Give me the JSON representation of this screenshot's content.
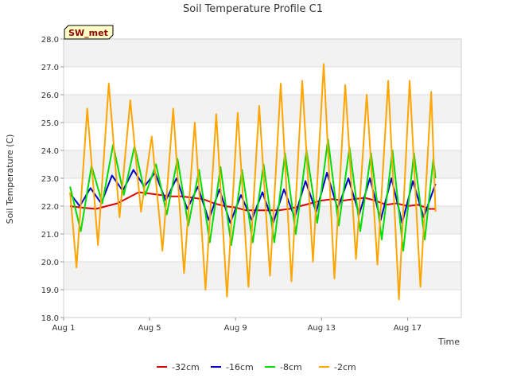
{
  "chart_data": {
    "type": "line",
    "title": "Soil Temperature Profile C1",
    "xlabel": "Time",
    "ylabel": "Soil Temperature (C)",
    "ylim": [
      18.0,
      28.0
    ],
    "y_ticks": [
      "18.0",
      "19.0",
      "20.0",
      "21.0",
      "22.0",
      "23.0",
      "24.0",
      "25.0",
      "26.0",
      "27.0",
      "28.0"
    ],
    "x_range": [
      "Aug 1",
      "Aug 19"
    ],
    "x_ticks": [
      {
        "day": 1,
        "label": "Aug 1"
      },
      {
        "day": 5,
        "label": "Aug 5"
      },
      {
        "day": 9,
        "label": "Aug 9"
      },
      {
        "day": 13,
        "label": "Aug 13"
      },
      {
        "day": 17,
        "label": "Aug 17"
      }
    ],
    "grid": "horizontal bands",
    "legend_position": "bottom-center",
    "site_label": "SW_met",
    "series": [
      {
        "name": "-32cm",
        "color": "#dd0000",
        "points": [
          [
            1.3,
            22.0
          ],
          [
            1.8,
            21.95
          ],
          [
            2.5,
            21.9
          ],
          [
            3.0,
            22.0
          ],
          [
            3.5,
            22.1
          ],
          [
            4.0,
            22.3
          ],
          [
            4.5,
            22.5
          ],
          [
            5.0,
            22.45
          ],
          [
            5.5,
            22.4
          ],
          [
            6.0,
            22.35
          ],
          [
            6.5,
            22.35
          ],
          [
            7.0,
            22.3
          ],
          [
            7.5,
            22.25
          ],
          [
            8.0,
            22.1
          ],
          [
            8.5,
            22.0
          ],
          [
            9.0,
            21.95
          ],
          [
            9.5,
            21.85
          ],
          [
            10.0,
            21.85
          ],
          [
            10.5,
            21.85
          ],
          [
            11.0,
            21.85
          ],
          [
            11.5,
            21.9
          ],
          [
            12.0,
            22.0
          ],
          [
            12.5,
            22.1
          ],
          [
            13.0,
            22.2
          ],
          [
            13.5,
            22.25
          ],
          [
            14.0,
            22.2
          ],
          [
            14.5,
            22.25
          ],
          [
            15.0,
            22.3
          ],
          [
            15.5,
            22.2
          ],
          [
            16.0,
            22.05
          ],
          [
            16.5,
            22.1
          ],
          [
            17.0,
            22.0
          ],
          [
            17.5,
            22.05
          ],
          [
            18.0,
            21.9
          ],
          [
            18.3,
            21.9
          ]
        ]
      },
      {
        "name": "-16cm",
        "color": "#0000cc",
        "points": [
          [
            1.3,
            22.45
          ],
          [
            1.75,
            22.0
          ],
          [
            2.25,
            22.65
          ],
          [
            2.75,
            22.1
          ],
          [
            3.25,
            23.1
          ],
          [
            3.75,
            22.55
          ],
          [
            4.25,
            23.3
          ],
          [
            4.75,
            22.7
          ],
          [
            5.25,
            23.2
          ],
          [
            5.75,
            22.2
          ],
          [
            6.25,
            23.0
          ],
          [
            6.75,
            21.9
          ],
          [
            7.25,
            22.7
          ],
          [
            7.75,
            21.5
          ],
          [
            8.25,
            22.6
          ],
          [
            8.75,
            21.4
          ],
          [
            9.25,
            22.4
          ],
          [
            9.75,
            21.5
          ],
          [
            10.25,
            22.5
          ],
          [
            10.75,
            21.4
          ],
          [
            11.25,
            22.6
          ],
          [
            11.75,
            21.6
          ],
          [
            12.25,
            22.9
          ],
          [
            12.75,
            21.8
          ],
          [
            13.25,
            23.2
          ],
          [
            13.75,
            21.9
          ],
          [
            14.25,
            23.0
          ],
          [
            14.75,
            21.7
          ],
          [
            15.25,
            23.0
          ],
          [
            15.75,
            21.5
          ],
          [
            16.25,
            23.0
          ],
          [
            16.75,
            21.4
          ],
          [
            17.25,
            22.9
          ],
          [
            17.75,
            21.6
          ],
          [
            18.3,
            22.8
          ]
        ]
      },
      {
        "name": "-8cm",
        "color": "#00dd00",
        "points": [
          [
            1.3,
            22.7
          ],
          [
            1.8,
            21.1
          ],
          [
            2.3,
            23.45
          ],
          [
            2.8,
            22.1
          ],
          [
            3.3,
            24.2
          ],
          [
            3.8,
            22.4
          ],
          [
            4.3,
            24.15
          ],
          [
            4.8,
            22.4
          ],
          [
            5.3,
            23.5
          ],
          [
            5.8,
            21.7
          ],
          [
            6.3,
            23.7
          ],
          [
            6.8,
            21.3
          ],
          [
            7.3,
            23.3
          ],
          [
            7.8,
            20.7
          ],
          [
            8.3,
            23.4
          ],
          [
            8.8,
            20.6
          ],
          [
            9.3,
            23.3
          ],
          [
            9.8,
            20.7
          ],
          [
            10.3,
            23.5
          ],
          [
            10.8,
            20.7
          ],
          [
            11.3,
            23.9
          ],
          [
            11.8,
            21.0
          ],
          [
            12.3,
            24.0
          ],
          [
            12.8,
            21.4
          ],
          [
            13.3,
            24.4
          ],
          [
            13.8,
            21.3
          ],
          [
            14.3,
            24.1
          ],
          [
            14.8,
            21.1
          ],
          [
            15.3,
            23.9
          ],
          [
            15.8,
            20.8
          ],
          [
            16.3,
            24.0
          ],
          [
            16.8,
            20.4
          ],
          [
            17.3,
            23.9
          ],
          [
            17.8,
            20.8
          ],
          [
            18.2,
            23.7
          ],
          [
            18.3,
            23.0
          ]
        ]
      },
      {
        "name": "-2cm",
        "color": "#ffa500",
        "points": [
          [
            1.3,
            22.5
          ],
          [
            1.6,
            19.8
          ],
          [
            2.1,
            25.5
          ],
          [
            2.6,
            20.6
          ],
          [
            3.1,
            26.4
          ],
          [
            3.6,
            21.6
          ],
          [
            4.1,
            25.8
          ],
          [
            4.6,
            21.8
          ],
          [
            5.1,
            24.5
          ],
          [
            5.6,
            20.4
          ],
          [
            6.1,
            25.5
          ],
          [
            6.6,
            19.6
          ],
          [
            7.1,
            25.0
          ],
          [
            7.6,
            19.0
          ],
          [
            8.1,
            25.3
          ],
          [
            8.6,
            18.75
          ],
          [
            9.1,
            25.35
          ],
          [
            9.6,
            19.1
          ],
          [
            10.1,
            25.6
          ],
          [
            10.6,
            19.5
          ],
          [
            11.1,
            26.4
          ],
          [
            11.6,
            19.3
          ],
          [
            12.1,
            26.5
          ],
          [
            12.6,
            20.0
          ],
          [
            13.1,
            27.1
          ],
          [
            13.6,
            19.4
          ],
          [
            14.1,
            26.35
          ],
          [
            14.6,
            20.1
          ],
          [
            15.1,
            26.0
          ],
          [
            15.6,
            19.9
          ],
          [
            16.1,
            26.5
          ],
          [
            16.6,
            18.65
          ],
          [
            17.1,
            26.5
          ],
          [
            17.6,
            19.1
          ],
          [
            18.1,
            26.1
          ],
          [
            18.3,
            21.8
          ]
        ]
      }
    ]
  }
}
